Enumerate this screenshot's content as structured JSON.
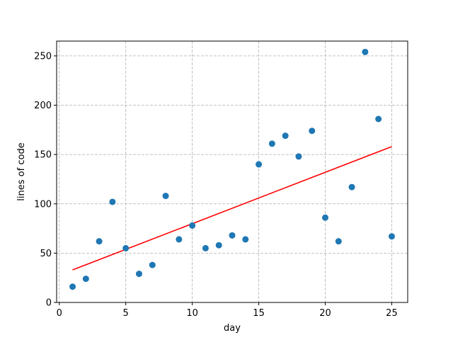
{
  "chart_data": {
    "type": "scatter",
    "title": "",
    "xlabel": "day",
    "ylabel": "lines of code",
    "xlim": [
      -0.2,
      26.2
    ],
    "ylim": [
      0,
      265
    ],
    "xticks": [
      0,
      5,
      10,
      15,
      20,
      25
    ],
    "yticks": [
      0,
      50,
      100,
      150,
      200,
      250
    ],
    "grid": true,
    "colors": {
      "points": "#1f77b4",
      "trend": "#ff0000",
      "grid": "#b0b0b0"
    },
    "series": [
      {
        "type": "scatter",
        "x": [
          1,
          2,
          3,
          4,
          5,
          6,
          7,
          8,
          9,
          10,
          11,
          12,
          13,
          14,
          15,
          16,
          17,
          18,
          19,
          20,
          21,
          22,
          23,
          24,
          25
        ],
        "y": [
          16,
          24,
          62,
          102,
          55,
          29,
          38,
          108,
          64,
          78,
          55,
          58,
          68,
          64,
          140,
          161,
          169,
          148,
          174,
          86,
          62,
          117,
          254,
          186,
          67
        ]
      },
      {
        "type": "line",
        "x": [
          1,
          25
        ],
        "y": [
          33,
          158
        ]
      }
    ]
  }
}
